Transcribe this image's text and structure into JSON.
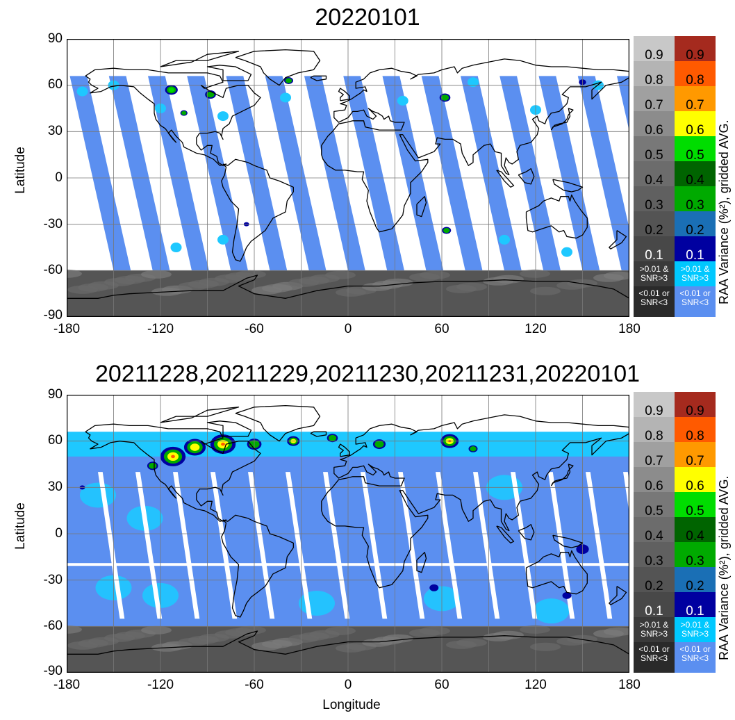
{
  "panels": [
    {
      "title": "20220101",
      "ylabel": "Latitude",
      "mode": "single",
      "y_ticks": [
        "90",
        "60",
        "30",
        "0",
        "-30",
        "-60",
        "-90"
      ],
      "x_ticks": [
        "-180",
        "-120",
        "-60",
        "0",
        "60",
        "120",
        "180"
      ]
    },
    {
      "title": "20211228,20211229,20211230,20211231,20220101",
      "ylabel": "Latitude",
      "mode": "composite",
      "y_ticks": [
        "90",
        "60",
        "30",
        "0",
        "-30",
        "-60",
        "-90"
      ],
      "x_ticks": [
        "-180",
        "-120",
        "-60",
        "0",
        "60",
        "120",
        "180"
      ]
    }
  ],
  "xlabel": "Longitude",
  "legend": {
    "axis_label": "RAA Variance (%²), gridded AVG.",
    "levels": [
      "0.9",
      "0.8",
      "0.7",
      "0.6",
      "0.5",
      "0.4",
      "0.3",
      "0.2",
      "0.1"
    ],
    "bins_gray": [
      "#c8c8c8",
      "#b4b4b4",
      "#a0a0a0",
      "#8c8c8c",
      "#787878",
      "#6c6c6c",
      "#606060",
      "#545454",
      "#484848"
    ],
    "bins_color": [
      "#a52a1e",
      "#ff5a00",
      "#ff9900",
      "#ffff00",
      "#00dd00",
      "#006400",
      "#00aa00",
      "#1a6fb5",
      "#0000a0"
    ],
    "low_snr_label_line1": ">0.01 &",
    "low_snr_label_line2": "SNR>3",
    "none_label_line1": "<0.01 or",
    "none_label_line2": "SNR<3",
    "low_gray": "#3a3a3a",
    "none_gray": "#2a2a2a",
    "low_color": "#00c8ff",
    "none_color": "#5b8ff0"
  },
  "colors": {
    "swath_blue": "#5b8ff0",
    "swath_cyan": "#1ec8ff",
    "polar_gray": "#555555",
    "coast": "#000000",
    "grid": "#777777"
  }
}
